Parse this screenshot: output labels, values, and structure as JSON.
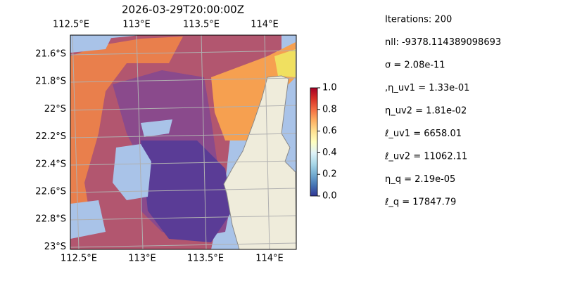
{
  "title": "2026-03-29T20:00:00Z",
  "map": {
    "lon_labels_top": [
      "112.5°E",
      "113°E",
      "113.5°E",
      "114°E"
    ],
    "lon_labels_bottom": [
      "112.5°E",
      "113°E",
      "113.5°E",
      "114°E"
    ],
    "lat_labels": [
      "21.6°S",
      "21.8°S",
      "22°S",
      "22.2°S",
      "22.4°S",
      "22.6°S",
      "22.8°S",
      "23°S"
    ]
  },
  "colorbar": {
    "lim": [
      0,
      1
    ],
    "ticks": [
      {
        "value": 0,
        "label": "0.0"
      },
      0.2,
      0.4,
      0.6,
      0.8,
      {
        "value": 1,
        "label": "1.0"
      }
    ]
  },
  "info": [
    "Iterations: 200",
    "nll: -9378.114389098693",
    "σ = 2.08e-11",
    ",η_uv1 = 1.33e-01",
    "η_uv2 = 1.81e-02",
    "ℓ_uv1 = 6658.01",
    "ℓ_uv2 = 11062.11",
    "η_q = 2.19e-05",
    "ℓ_q = 17847.79"
  ]
}
